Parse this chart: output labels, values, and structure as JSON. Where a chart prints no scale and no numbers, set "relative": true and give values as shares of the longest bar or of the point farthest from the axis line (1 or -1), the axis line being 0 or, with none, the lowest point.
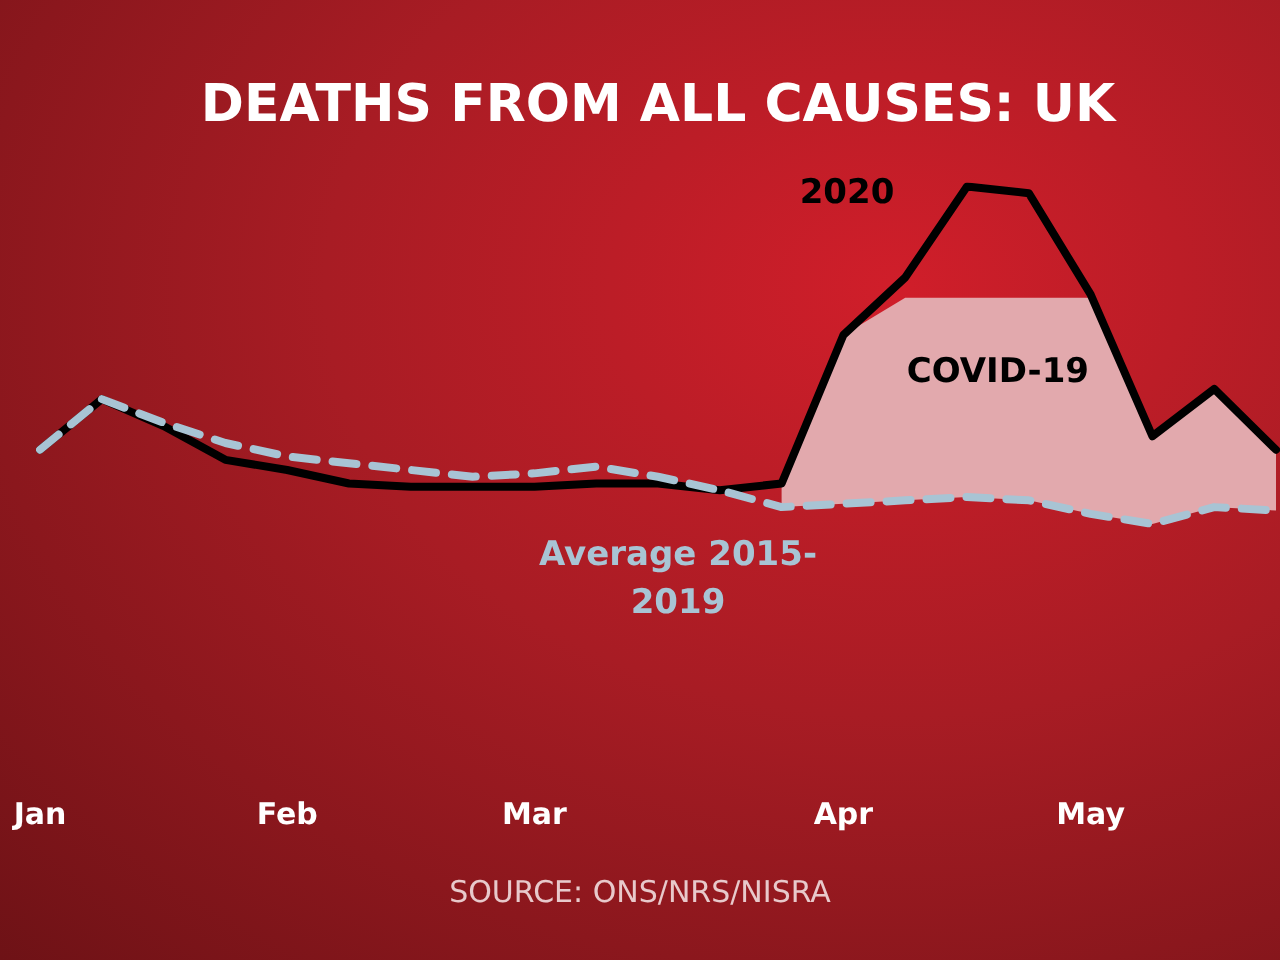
{
  "chart_data": {
    "type": "line",
    "title": "DEATHS FROM ALL CAUSES: UK",
    "relative": true,
    "legend": false,
    "grid": false,
    "marker": "none",
    "tick_labels": "x",
    "categories": [
      "Jan",
      null,
      null,
      null,
      "Feb",
      null,
      null,
      null,
      "Mar",
      null,
      null,
      null,
      null,
      "Apr",
      null,
      null,
      null,
      "May",
      null,
      null,
      null
    ],
    "series": [
      {
        "name": "COVID-19",
        "type": "area",
        "color": "#e2a9ad",
        "values": [
          null,
          null,
          null,
          null,
          null,
          null,
          null,
          null,
          null,
          null,
          null,
          null,
          0.12,
          0.56,
          0.67,
          0.67,
          0.67,
          0.67,
          0.26,
          0.4,
          0.22
        ]
      },
      {
        "name": "2020",
        "color": "#000000",
        "line_style": "solid",
        "values": [
          0.22,
          0.37,
          0.29,
          0.19,
          0.16,
          0.12,
          0.11,
          0.11,
          0.11,
          0.12,
          0.12,
          0.1,
          0.12,
          0.56,
          0.73,
          1,
          0.98,
          0.68,
          0.26,
          0.4,
          0.22
        ]
      },
      {
        "name": "Average 2015-2019",
        "color": "#a8c4d4",
        "line_style": "dashed",
        "values": [
          0.22,
          0.37,
          0.3,
          0.24,
          0.2,
          0.18,
          0.16,
          0.14,
          0.15,
          0.17,
          0.14,
          0.1,
          0.05,
          0.06,
          0.07,
          0.08,
          0.07,
          0.03,
          0,
          0.05,
          0.04
        ]
      }
    ],
    "annotations": [
      "SOURCE: ONS/NRS/NISRA"
    ]
  }
}
